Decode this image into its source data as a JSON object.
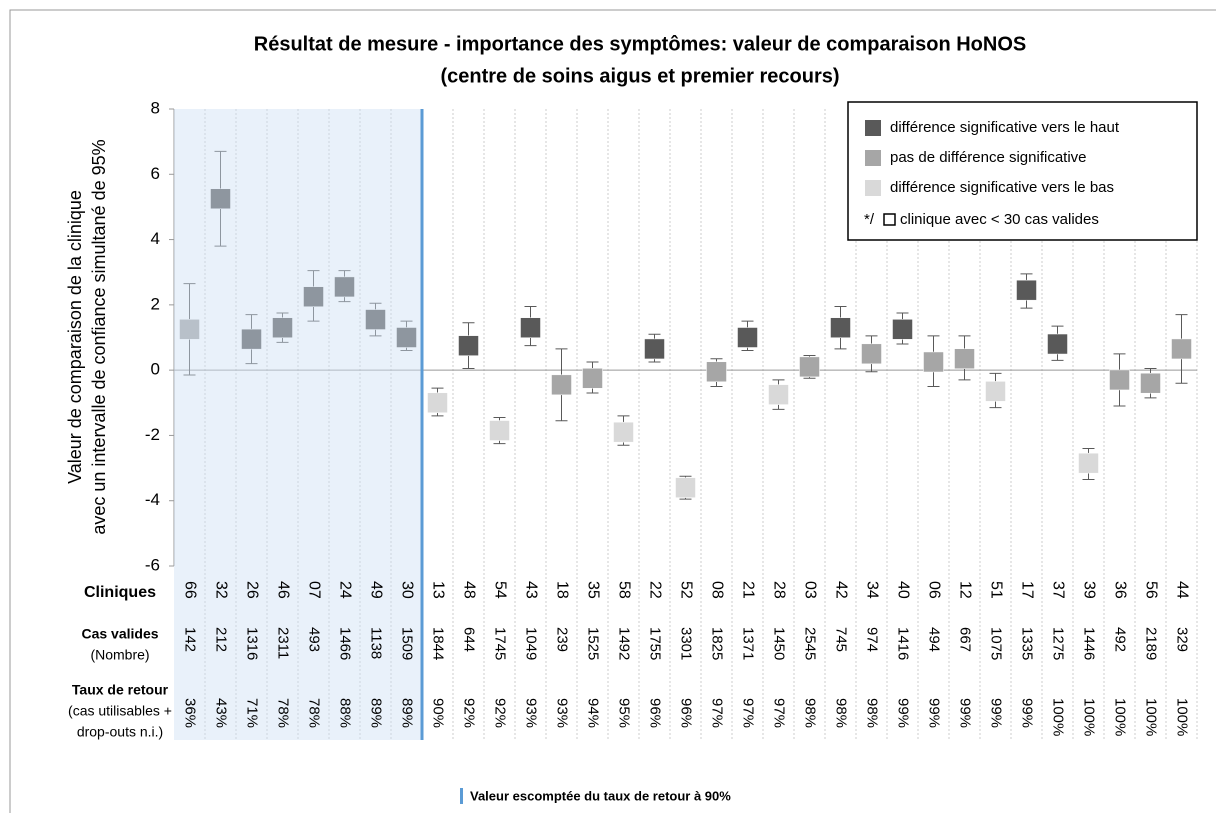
{
  "chart_data": {
    "type": "errorbar",
    "title": [
      "Résultat de mesure - importance des symptômes: valeur de comparaison  HoNOS",
      "(centre de soins aigus et premier recours)"
    ],
    "y_label": [
      "Valeur de comparaison de la clinique",
      "avec un intervalle de confiance simultané de 95%"
    ],
    "ylim": [
      -6,
      8
    ],
    "yticks": [
      -6,
      -4,
      -2,
      0,
      2,
      4,
      6,
      8
    ],
    "categories": [
      "66",
      "32",
      "26",
      "46",
      "07",
      "24",
      "49",
      "30",
      "13",
      "48",
      "54",
      "43",
      "18",
      "35",
      "58",
      "22",
      "52",
      "08",
      "21",
      "28",
      "03",
      "42",
      "34",
      "40",
      "06",
      "12",
      "51",
      "17",
      "37",
      "39",
      "36",
      "56",
      "44"
    ],
    "cases": [
      142,
      212,
      1316,
      2311,
      493,
      1466,
      1138,
      1509,
      1844,
      644,
      1745,
      1049,
      239,
      1525,
      1492,
      1755,
      3301,
      1825,
      1371,
      1450,
      2545,
      745,
      974,
      1416,
      494,
      667,
      1075,
      1335,
      1275,
      1446,
      492,
      2189,
      329
    ],
    "return_rate": [
      "36%",
      "43%",
      "71%",
      "78%",
      "78%",
      "88%",
      "89%",
      "89%",
      "90%",
      "92%",
      "92%",
      "93%",
      "93%",
      "94%",
      "95%",
      "96%",
      "96%",
      "97%",
      "97%",
      "97%",
      "98%",
      "98%",
      "98%",
      "99%",
      "99%",
      "99%",
      "99%",
      "99%",
      "100%",
      "100%",
      "100%",
      "100%",
      "100%"
    ],
    "series": [
      {
        "name": "différence significative vers le haut",
        "color": "#595959",
        "values": [
          null,
          5.25,
          0.95,
          1.3,
          2.25,
          2.55,
          1.55,
          1.0,
          null,
          0.75,
          null,
          1.3,
          null,
          null,
          null,
          0.65,
          null,
          null,
          1.0,
          null,
          null,
          1.3,
          null,
          1.25,
          null,
          null,
          null,
          2.45,
          0.8,
          null,
          null,
          null,
          null
        ],
        "lower": [
          null,
          3.8,
          0.2,
          0.85,
          1.5,
          2.1,
          1.05,
          0.6,
          null,
          0.05,
          null,
          0.75,
          null,
          null,
          null,
          0.25,
          null,
          null,
          0.6,
          null,
          null,
          0.65,
          null,
          0.8,
          null,
          null,
          null,
          1.9,
          0.3,
          null,
          null,
          null,
          null
        ],
        "upper": [
          null,
          6.7,
          1.7,
          1.75,
          3.05,
          3.05,
          2.05,
          1.5,
          null,
          1.45,
          null,
          1.95,
          null,
          null,
          null,
          1.1,
          null,
          null,
          1.5,
          null,
          null,
          1.95,
          null,
          1.75,
          null,
          null,
          null,
          2.95,
          1.35,
          null,
          null,
          null,
          null
        ]
      },
      {
        "name": "pas de différence significative",
        "color": "#a6a6a6",
        "values": [
          1.25,
          null,
          null,
          null,
          null,
          null,
          null,
          null,
          null,
          null,
          null,
          null,
          -0.45,
          -0.25,
          null,
          null,
          null,
          -0.05,
          null,
          null,
          0.1,
          null,
          0.5,
          null,
          0.25,
          0.35,
          null,
          null,
          null,
          null,
          -0.3,
          -0.4,
          0.65
        ],
        "lower": [
          -0.15,
          null,
          null,
          null,
          null,
          null,
          null,
          null,
          null,
          null,
          null,
          null,
          -1.55,
          -0.7,
          null,
          null,
          null,
          -0.5,
          null,
          null,
          -0.25,
          null,
          -0.05,
          null,
          -0.5,
          -0.3,
          null,
          null,
          null,
          null,
          -1.1,
          -0.85,
          -0.4
        ],
        "upper": [
          2.65,
          null,
          null,
          null,
          null,
          null,
          null,
          null,
          null,
          null,
          null,
          null,
          0.65,
          0.25,
          null,
          null,
          null,
          0.35,
          null,
          null,
          0.45,
          null,
          1.05,
          null,
          1.05,
          1.05,
          null,
          null,
          null,
          null,
          0.5,
          0.05,
          1.7
        ]
      },
      {
        "name": "différence significative vers le bas",
        "color": "#d9d9d9",
        "values": [
          null,
          null,
          null,
          null,
          null,
          null,
          null,
          null,
          -1.0,
          null,
          -1.85,
          null,
          null,
          null,
          -1.9,
          null,
          -3.6,
          null,
          null,
          -0.75,
          null,
          null,
          null,
          null,
          null,
          null,
          -0.65,
          null,
          null,
          -2.85,
          null,
          null,
          null
        ],
        "lower": [
          null,
          null,
          null,
          null,
          null,
          null,
          null,
          null,
          -1.4,
          null,
          -2.25,
          null,
          null,
          null,
          -2.3,
          null,
          -3.95,
          null,
          null,
          -1.2,
          null,
          null,
          null,
          null,
          null,
          null,
          -1.15,
          null,
          null,
          -3.35,
          null,
          null,
          null
        ],
        "upper": [
          null,
          null,
          null,
          null,
          null,
          null,
          null,
          null,
          -0.55,
          null,
          -1.45,
          null,
          null,
          null,
          -1.4,
          null,
          -3.25,
          null,
          null,
          -0.3,
          null,
          null,
          null,
          null,
          null,
          null,
          -0.1,
          null,
          null,
          -2.4,
          null,
          null,
          null
        ]
      }
    ],
    "legend_note": [
      "*/",
      "clinique avec < 30 cas valides"
    ],
    "row_labels": {
      "clinics": "Cliniques",
      "cases": [
        "Cas valides",
        "(Nombre)"
      ],
      "return_rate": [
        "Taux de retour",
        "(cas utilisables +",
        "drop-outs n.i.)"
      ]
    },
    "footnote": "Valeur escomptée du taux de retour à 90%",
    "highlight_count": 8,
    "grid": true
  }
}
